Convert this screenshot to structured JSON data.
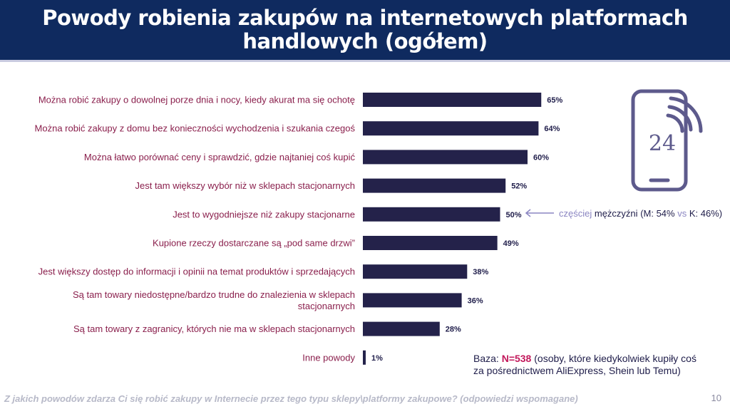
{
  "title": "Powody robienia zakupów na internetowych platformach handlowych (ogółem)",
  "colors": {
    "header_bg": "#0f2a5f",
    "bar": "#24224a",
    "label": "#8a1f4c",
    "accent_pink": "#c2185b",
    "note_light": "#8b86c2"
  },
  "chart_data": {
    "type": "bar",
    "orientation": "horizontal",
    "categories": [
      [
        "Można robić zakupy o dowolnej porze dnia i nocy, kiedy akurat ma się ochotę"
      ],
      [
        "Można robić zakupy z domu bez konieczności wychodzenia i szukania czegoś"
      ],
      [
        "Można łatwo porównać ceny i sprawdzić, gdzie najtaniej coś kupić"
      ],
      [
        "Jest tam większy wybór niż w sklepach stacjonarnych"
      ],
      [
        "Jest to wygodniejsze niż zakupy stacjonarne"
      ],
      [
        "Kupione rzeczy dostarczane są „pod same drzwi”"
      ],
      [
        "Jest większy dostęp do informacji i opinii na temat produktów i sprzedających"
      ],
      [
        "Są tam towary niedostępne/bardzo trudne do znalezienia w sklepach",
        "stacjonarnych"
      ],
      [
        "Są tam towary z zagranicy, których nie ma w sklepach stacjonarnych"
      ],
      [
        "Inne powody"
      ]
    ],
    "values": [
      65,
      64,
      60,
      52,
      50,
      49,
      38,
      36,
      28,
      1
    ],
    "value_labels": [
      "65%",
      "64%",
      "60%",
      "52%",
      "50%",
      "49%",
      "38%",
      "36%",
      "28%",
      "1%"
    ],
    "unit": "%",
    "xlim": [
      0,
      100
    ]
  },
  "note": {
    "prefix": "częściej",
    "group": "mężczyźni",
    "open": "(M: 54%",
    "vs": "vs",
    "close": "K: 46%)",
    "target_index": 4
  },
  "base": {
    "label": "Baza:",
    "n": "N=538",
    "description": "(osoby, które kiedykolwiek kupiły coś za pośrednictwem AliExpress, Shein lub Temu)"
  },
  "question": "Z jakich powodów zdarza Ci się robić zakupy w Internecie przez tego typu sklepy\\platformy zakupowe? (odpowiedzi wspomagane)",
  "page_number": "10",
  "icon": "smartphone-24h-icon"
}
